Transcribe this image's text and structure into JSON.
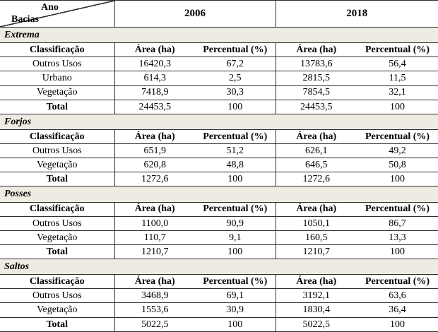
{
  "header": {
    "corner": {
      "top_label": "Ano",
      "bottom_label": "Bacias"
    },
    "year_columns": [
      "2006",
      "2018"
    ]
  },
  "columns": {
    "classification": "Classificação",
    "area": "Área (ha)",
    "percent": "Percentual (%)"
  },
  "sections": [
    {
      "name": "Extrema",
      "rows": [
        {
          "label": "Outros Usos",
          "bold": false,
          "values": [
            "16420,3",
            "67,2",
            "13783,6",
            "56,4"
          ]
        },
        {
          "label": "Urbano",
          "bold": false,
          "values": [
            "614,3",
            "2,5",
            "2815,5",
            "11,5"
          ]
        },
        {
          "label": "Vegetação",
          "bold": false,
          "values": [
            "7418,9",
            "30,3",
            "7854,5",
            "32,1"
          ]
        },
        {
          "label": "Total",
          "bold": true,
          "values": [
            "24453,5",
            "100",
            "24453,5",
            "100"
          ]
        }
      ]
    },
    {
      "name": "Forjos",
      "rows": [
        {
          "label": "Outros Usos",
          "bold": false,
          "values": [
            "651,9",
            "51,2",
            "626,1",
            "49,2"
          ]
        },
        {
          "label": "Vegetação",
          "bold": false,
          "values": [
            "620,8",
            "48,8",
            "646,5",
            "50,8"
          ]
        },
        {
          "label": "Total",
          "bold": true,
          "values": [
            "1272,6",
            "100",
            "1272,6",
            "100"
          ]
        }
      ]
    },
    {
      "name": "Posses",
      "rows": [
        {
          "label": "Outros Usos",
          "bold": false,
          "values": [
            "1100,0",
            "90,9",
            "1050,1",
            "86,7"
          ]
        },
        {
          "label": "Vegetação",
          "bold": false,
          "values": [
            "110,7",
            "9,1",
            "160,5",
            "13,3"
          ]
        },
        {
          "label": "Total",
          "bold": true,
          "values": [
            "1210,7",
            "100",
            "1210,7",
            "100"
          ]
        }
      ]
    },
    {
      "name": "Saltos",
      "rows": [
        {
          "label": "Outros Usos",
          "bold": false,
          "values": [
            "3468,9",
            "69,1",
            "3192,1",
            "63,6"
          ]
        },
        {
          "label": "Vegetação",
          "bold": false,
          "values": [
            "1553,6",
            "30,9",
            "1830,4",
            "36,4"
          ]
        },
        {
          "label": "Total",
          "bold": true,
          "values": [
            "5022,5",
            "100",
            "5022,5",
            "100"
          ]
        }
      ]
    }
  ],
  "colors": {
    "band_background": "#edebe2",
    "border": "#2e2e2e",
    "text": "#000000",
    "page_background": "#ffffff"
  }
}
